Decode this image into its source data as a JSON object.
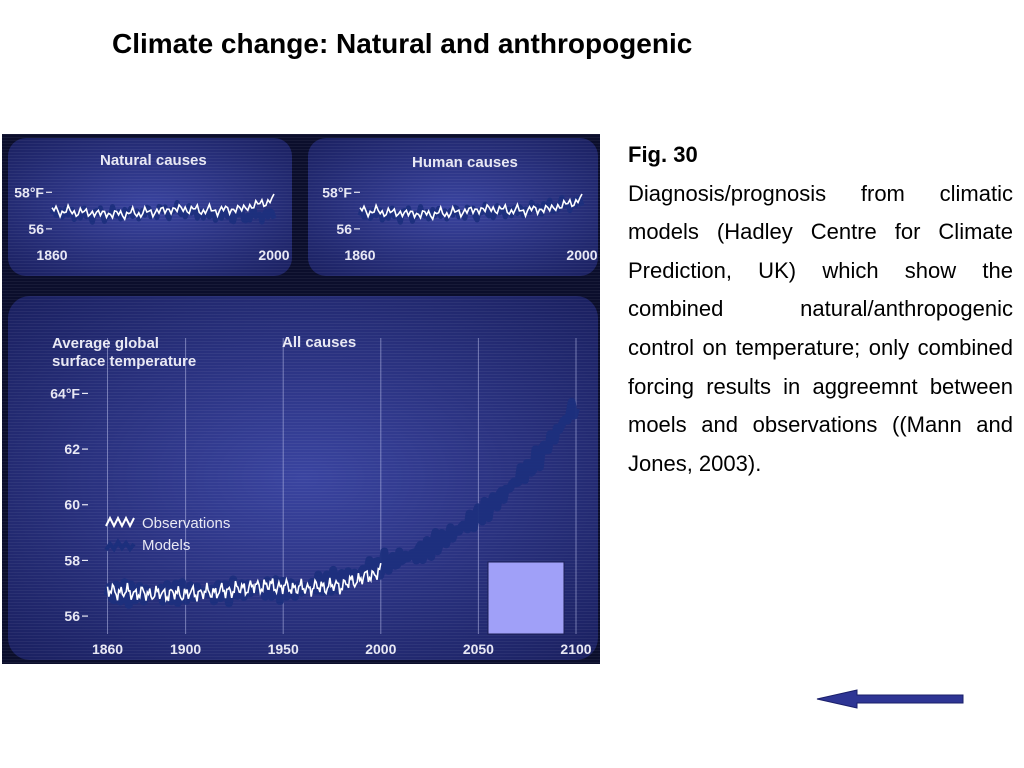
{
  "slide": {
    "title": "Climate change: Natural and anthropogenic"
  },
  "caption": {
    "heading": "Fig. 30",
    "body": "Diagnosis/prognosis from climatic models (Hadley Centre for Climate Prediction, UK) which show the combined natural/anthropogenic control on temperature; only combined forcing results in aggreemnt between moels and observations ((Mann and Jones, 2003)."
  },
  "colors": {
    "screen_background": "#28306a",
    "model_band": "#1c2f7d",
    "observations_line": "#ffffff",
    "overlay_square": "#a0a0f8",
    "back_arrow": "#2e3594"
  },
  "navigation": {
    "back_arrow_icon": "left-arrow-icon"
  },
  "chart_data": [
    {
      "type": "line",
      "title": "Natural causes",
      "y_tick_labels": [
        "58°F",
        "56"
      ],
      "x_tick_labels": [
        "1860",
        "2000"
      ],
      "ylim": [
        55.5,
        59
      ],
      "xlim": [
        1860,
        2000
      ],
      "series": [
        {
          "x": [
            1860,
            1880,
            1900,
            1920,
            1940,
            1960,
            1980,
            2000
          ],
          "values": [
            56.9,
            56.8,
            56.8,
            56.9,
            57.0,
            56.8,
            56.7,
            56.8
          ]
        },
        {
          "x": [
            1860,
            1880,
            1900,
            1920,
            1940,
            1960,
            1980,
            2000
          ],
          "values": [
            57.0,
            56.9,
            56.8,
            56.9,
            57.1,
            57.0,
            57.1,
            57.6
          ]
        }
      ]
    },
    {
      "type": "line",
      "title": "Human causes",
      "y_tick_labels": [
        "58°F",
        "56"
      ],
      "x_tick_labels": [
        "1860",
        "2000"
      ],
      "ylim": [
        55.5,
        59
      ],
      "xlim": [
        1860,
        2000
      ],
      "series": [
        {
          "x": [
            1860,
            1880,
            1900,
            1920,
            1940,
            1960,
            1980,
            2000
          ],
          "values": [
            56.8,
            56.8,
            56.8,
            56.9,
            56.9,
            57.0,
            57.2,
            57.5
          ]
        },
        {
          "x": [
            1860,
            1880,
            1900,
            1920,
            1940,
            1960,
            1980,
            2000
          ],
          "values": [
            57.0,
            56.9,
            56.8,
            56.9,
            57.1,
            57.0,
            57.1,
            57.6
          ]
        }
      ]
    },
    {
      "type": "line",
      "title": "All causes",
      "ylabel": "Average global surface temperature",
      "y_ticks": [
        56,
        58,
        60,
        62,
        64
      ],
      "y_tick_labels": [
        "56",
        "58",
        "60",
        "62",
        "64°F"
      ],
      "x_ticks": [
        1860,
        1900,
        1950,
        2000,
        2050,
        2100
      ],
      "ylim": [
        55.5,
        65.2
      ],
      "xlim": [
        1850,
        2100
      ],
      "legend": [
        "Observations",
        "Models"
      ],
      "series": [
        {
          "name": "Models",
          "x": [
            1860,
            1880,
            1900,
            1920,
            1940,
            1960,
            1980,
            2000,
            2020,
            2040,
            2060,
            2080,
            2100
          ],
          "values": [
            56.8,
            56.8,
            56.8,
            56.9,
            57.0,
            57.0,
            57.3,
            57.8,
            58.3,
            59.1,
            60.2,
            61.6,
            63.6
          ]
        },
        {
          "name": "Observations",
          "x": [
            1860,
            1880,
            1900,
            1920,
            1940,
            1960,
            1980,
            2000
          ],
          "values": [
            56.9,
            56.8,
            56.8,
            56.9,
            57.1,
            57.0,
            57.1,
            57.6
          ]
        }
      ]
    }
  ]
}
